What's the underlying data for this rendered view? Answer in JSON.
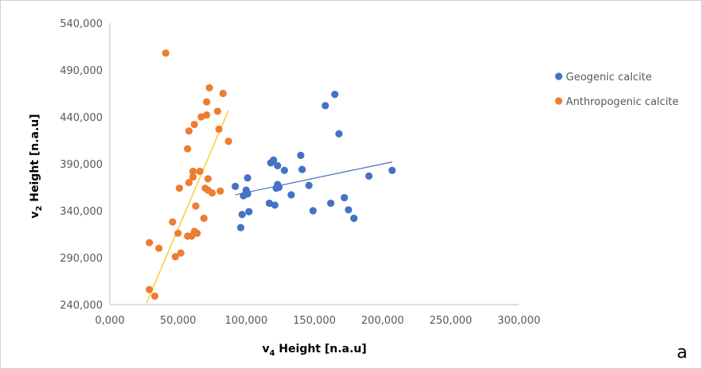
{
  "chart_data": {
    "type": "scatter",
    "xlabel": "v4 Height [n.a.u]",
    "ylabel": "v2 Height [n.a.u]",
    "xlim": [
      0,
      300000
    ],
    "ylim": [
      240000,
      540000
    ],
    "x_ticks": [
      "0,000",
      "50,000",
      "100,000",
      "150,000",
      "200,000",
      "250,000",
      "300,000"
    ],
    "y_ticks": [
      "240,000",
      "290,000",
      "340,000",
      "390,000",
      "440,000",
      "490,000",
      "540,000"
    ],
    "panel_label": "a",
    "legend_position": "right",
    "series": [
      {
        "name": "Geogenic calcite",
        "color": "#4472C4",
        "points": [
          [
            92000,
            366000
          ],
          [
            96000,
            322000
          ],
          [
            97000,
            336000
          ],
          [
            98000,
            356000
          ],
          [
            100000,
            362000
          ],
          [
            101000,
            358000
          ],
          [
            101000,
            375000
          ],
          [
            102000,
            339000
          ],
          [
            117000,
            348000
          ],
          [
            118000,
            391000
          ],
          [
            120000,
            394000
          ],
          [
            121000,
            346000
          ],
          [
            122000,
            364000
          ],
          [
            123000,
            368000
          ],
          [
            123000,
            388000
          ],
          [
            124000,
            365000
          ],
          [
            128000,
            383000
          ],
          [
            133000,
            357000
          ],
          [
            140000,
            399000
          ],
          [
            141000,
            384000
          ],
          [
            146000,
            367000
          ],
          [
            149000,
            340000
          ],
          [
            158000,
            452000
          ],
          [
            162000,
            348000
          ],
          [
            165000,
            464000
          ],
          [
            168000,
            422000
          ],
          [
            172000,
            354000
          ],
          [
            175000,
            341000
          ],
          [
            179000,
            332000
          ],
          [
            190000,
            377000
          ],
          [
            207000,
            383000
          ]
        ],
        "trendline": [
          [
            92000,
            357000
          ],
          [
            207000,
            392000
          ]
        ]
      },
      {
        "name": "Anthropogenic calcite",
        "color": "#ED7D31",
        "points": [
          [
            29000,
            306000
          ],
          [
            29000,
            256000
          ],
          [
            33000,
            249000
          ],
          [
            36000,
            300000
          ],
          [
            41000,
            508000
          ],
          [
            46000,
            328000
          ],
          [
            48000,
            291000
          ],
          [
            50000,
            316000
          ],
          [
            51000,
            364000
          ],
          [
            52000,
            295000
          ],
          [
            57000,
            406000
          ],
          [
            57000,
            313000
          ],
          [
            58000,
            370000
          ],
          [
            58000,
            425000
          ],
          [
            60000,
            313000
          ],
          [
            61000,
            376000
          ],
          [
            61000,
            382000
          ],
          [
            62000,
            318000
          ],
          [
            62000,
            432000
          ],
          [
            63000,
            345000
          ],
          [
            64000,
            316000
          ],
          [
            66000,
            382000
          ],
          [
            67000,
            440000
          ],
          [
            69000,
            332000
          ],
          [
            70000,
            364000
          ],
          [
            71000,
            456000
          ],
          [
            71000,
            442000
          ],
          [
            72000,
            374000
          ],
          [
            72000,
            362000
          ],
          [
            73000,
            471000
          ],
          [
            75000,
            359000
          ],
          [
            79000,
            446000
          ],
          [
            80000,
            427000
          ],
          [
            81000,
            361000
          ],
          [
            83000,
            465000
          ],
          [
            87000,
            414000
          ]
        ],
        "trendline": [
          [
            27000,
            242000
          ],
          [
            87000,
            447000
          ]
        ]
      }
    ]
  }
}
